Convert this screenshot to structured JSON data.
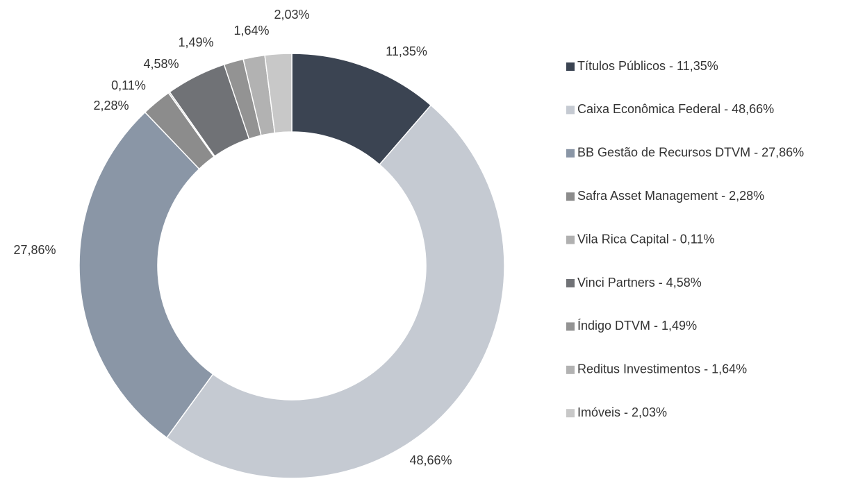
{
  "chart_data": {
    "type": "donut",
    "categories": [
      "Títulos Públicos - 11,35%",
      "Caixa Econômica Federal - 48,66%",
      "BB Gestão de Recursos DTVM - 27,86%",
      "Safra Asset Management - 2,28%",
      "Vila Rica Capital - 0,11%",
      "Vinci Partners - 4,58%",
      "Índigo DTVM - 1,49%",
      "Reditus Investimentos - 1,64%",
      "Imóveis - 2,03%"
    ],
    "values": [
      11.35,
      48.66,
      27.86,
      2.28,
      0.11,
      4.58,
      1.49,
      1.64,
      2.03
    ],
    "value_labels": [
      "11,35%",
      "48,66%",
      "27,86%",
      "2,28%",
      "0,11%",
      "4,58%",
      "1,49%",
      "1,64%",
      "2,03%"
    ],
    "colors": [
      "#3b4452",
      "#c5cad2",
      "#8a96a6",
      "#8c8c8c",
      "#b0b0b0",
      "#707276",
      "#939393",
      "#b2b2b2",
      "#c8c8c8"
    ],
    "legend": "right"
  }
}
